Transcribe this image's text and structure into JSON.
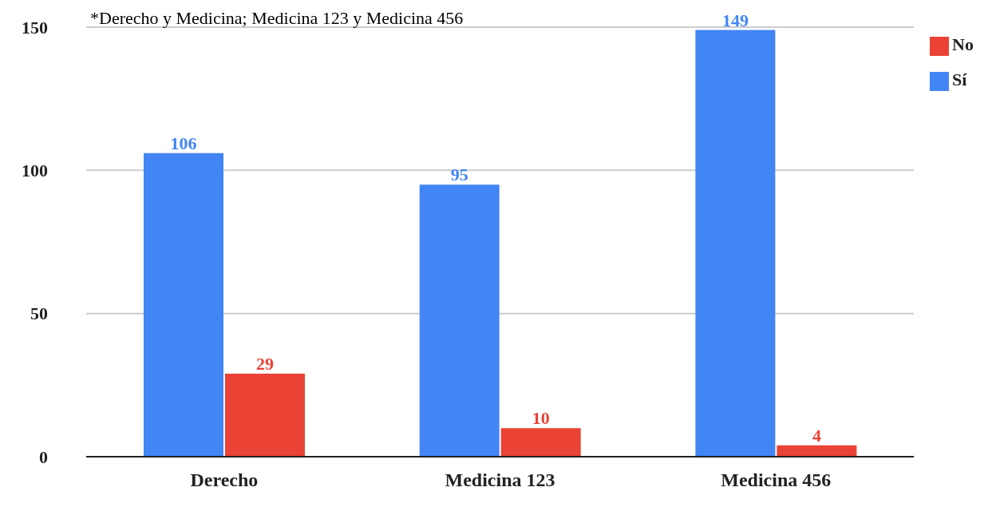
{
  "chart_data": {
    "type": "bar",
    "annotations": [
      "*Derecho y Medicina; Medicina 123 y Medicina 456"
    ],
    "categories": [
      "Derecho",
      "Medicina 123",
      "Medicina 456"
    ],
    "series": [
      {
        "name": "Sí",
        "color": "#4285f4",
        "values": [
          106,
          95,
          149
        ]
      },
      {
        "name": "No",
        "color": "#ea4335",
        "values": [
          29,
          10,
          4
        ]
      }
    ],
    "ylim": [
      0,
      150
    ],
    "yticks": [
      0,
      50,
      100,
      150
    ],
    "grid": "y",
    "legend": "top right",
    "data_labels": true
  }
}
